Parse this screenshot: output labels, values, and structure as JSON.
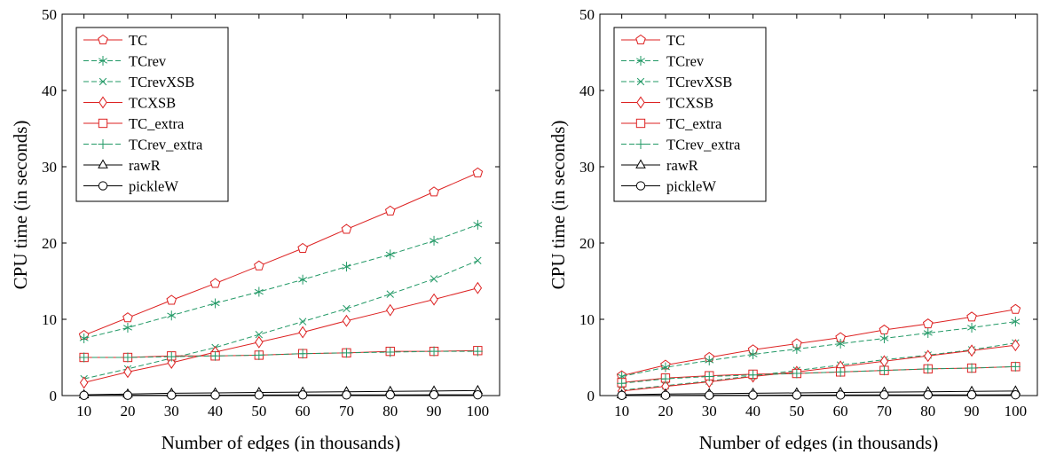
{
  "chart_data": [
    {
      "type": "line",
      "xlabel": "Number of edges (in thousands)",
      "ylabel": "CPU time (in seconds)",
      "xlim": [
        5,
        105
      ],
      "ylim": [
        0,
        50
      ],
      "x_ticks": [
        10,
        20,
        30,
        40,
        50,
        60,
        70,
        80,
        90,
        100
      ],
      "y_ticks": [
        0,
        10,
        20,
        30,
        40,
        50
      ],
      "grid": false,
      "legend_position": "top-left",
      "x": [
        10,
        20,
        30,
        40,
        50,
        60,
        70,
        80,
        90,
        100
      ],
      "series": [
        {
          "name": "TC",
          "color": "#dd2222",
          "dash": "solid",
          "marker": "pentagon",
          "values": [
            7.9,
            10.2,
            12.5,
            14.7,
            17.0,
            19.3,
            21.8,
            24.2,
            26.7,
            29.2
          ]
        },
        {
          "name": "TCrev",
          "color": "#229966",
          "dash": "dashed",
          "marker": "asterisk",
          "values": [
            7.5,
            8.9,
            10.5,
            12.1,
            13.6,
            15.2,
            16.9,
            18.5,
            20.3,
            22.4
          ]
        },
        {
          "name": "TCrevXSB",
          "color": "#229966",
          "dash": "dashed",
          "marker": "x",
          "values": [
            2.2,
            3.5,
            4.9,
            6.3,
            8.0,
            9.7,
            11.4,
            13.3,
            15.3,
            17.7
          ]
        },
        {
          "name": "TCXSB",
          "color": "#dd2222",
          "dash": "solid",
          "marker": "diamond",
          "values": [
            1.7,
            3.1,
            4.3,
            5.7,
            7.0,
            8.3,
            9.8,
            11.2,
            12.6,
            14.1
          ]
        },
        {
          "name": "TC_extra",
          "color": "#dd2222",
          "dash": "solid",
          "marker": "square",
          "values": [
            5.0,
            5.0,
            5.2,
            5.2,
            5.3,
            5.5,
            5.6,
            5.8,
            5.8,
            5.9
          ]
        },
        {
          "name": "TCrev_extra",
          "color": "#229966",
          "dash": "dashed",
          "marker": "plus",
          "values": [
            5.0,
            5.0,
            5.1,
            5.2,
            5.3,
            5.5,
            5.6,
            5.7,
            5.8,
            5.8
          ]
        },
        {
          "name": "rawR",
          "color": "#000000",
          "dash": "solid",
          "marker": "triangle",
          "values": [
            0.1,
            0.2,
            0.3,
            0.35,
            0.4,
            0.45,
            0.5,
            0.55,
            0.6,
            0.65
          ]
        },
        {
          "name": "pickleW",
          "color": "#000000",
          "dash": "solid",
          "marker": "circle",
          "values": [
            0.02,
            0.04,
            0.05,
            0.06,
            0.07,
            0.08,
            0.08,
            0.09,
            0.1,
            0.1
          ]
        }
      ]
    },
    {
      "type": "line",
      "xlabel": "Number of edges (in thousands)",
      "ylabel": "CPU time (in seconds)",
      "xlim": [
        5,
        105
      ],
      "ylim": [
        0,
        50
      ],
      "x_ticks": [
        10,
        20,
        30,
        40,
        50,
        60,
        70,
        80,
        90,
        100
      ],
      "y_ticks": [
        0,
        10,
        20,
        30,
        40,
        50
      ],
      "grid": false,
      "legend_position": "top-left",
      "x": [
        10,
        20,
        30,
        40,
        50,
        60,
        70,
        80,
        90,
        100
      ],
      "series": [
        {
          "name": "TC",
          "color": "#dd2222",
          "dash": "solid",
          "marker": "pentagon",
          "values": [
            2.6,
            4.0,
            5.0,
            6.0,
            6.8,
            7.6,
            8.6,
            9.4,
            10.3,
            11.3
          ]
        },
        {
          "name": "TCrev",
          "color": "#229966",
          "dash": "dashed",
          "marker": "asterisk",
          "values": [
            2.5,
            3.7,
            4.6,
            5.4,
            6.1,
            6.8,
            7.5,
            8.2,
            8.9,
            9.7
          ]
        },
        {
          "name": "TCrevXSB",
          "color": "#229966",
          "dash": "dashed",
          "marker": "x",
          "values": [
            0.7,
            1.3,
            1.9,
            2.6,
            3.3,
            4.0,
            4.7,
            5.3,
            6.0,
            6.9
          ]
        },
        {
          "name": "TCXSB",
          "color": "#dd2222",
          "dash": "solid",
          "marker": "diamond",
          "values": [
            0.6,
            1.2,
            1.8,
            2.5,
            3.1,
            3.8,
            4.5,
            5.2,
            5.9,
            6.6
          ]
        },
        {
          "name": "TC_extra",
          "color": "#dd2222",
          "dash": "solid",
          "marker": "square",
          "values": [
            1.7,
            2.3,
            2.6,
            2.8,
            2.9,
            3.1,
            3.3,
            3.5,
            3.6,
            3.8
          ]
        },
        {
          "name": "TCrev_extra",
          "color": "#229966",
          "dash": "dashed",
          "marker": "plus",
          "values": [
            1.6,
            2.2,
            2.5,
            2.7,
            2.9,
            3.1,
            3.3,
            3.5,
            3.6,
            3.8
          ]
        },
        {
          "name": "rawR",
          "color": "#000000",
          "dash": "solid",
          "marker": "triangle",
          "values": [
            0.1,
            0.2,
            0.25,
            0.3,
            0.35,
            0.4,
            0.45,
            0.5,
            0.55,
            0.6
          ]
        },
        {
          "name": "pickleW",
          "color": "#000000",
          "dash": "solid",
          "marker": "circle",
          "values": [
            0.02,
            0.03,
            0.04,
            0.05,
            0.06,
            0.07,
            0.08,
            0.08,
            0.09,
            0.1
          ]
        }
      ]
    }
  ]
}
